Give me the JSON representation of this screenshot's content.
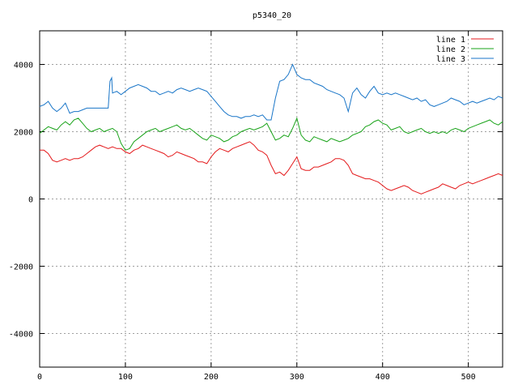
{
  "chart_data": {
    "type": "line",
    "title": "p5340_20",
    "xlabel": "",
    "ylabel": "",
    "xlim": [
      0,
      540
    ],
    "ylim": [
      -5000,
      5000
    ],
    "xticks": [
      0,
      100,
      200,
      300,
      400,
      500
    ],
    "yticks": [
      -4000,
      -2000,
      0,
      2000,
      4000
    ],
    "xtick_labels": [
      "0",
      "100",
      "200",
      "300",
      "400",
      "500"
    ],
    "ytick_labels": [
      "-4000",
      "-2000",
      "0",
      "2000",
      "4000"
    ],
    "grid": true,
    "legend_position": "top-right",
    "series": [
      {
        "name": "line 1",
        "color": "#e41a1c",
        "x": [
          0,
          5,
          10,
          15,
          20,
          25,
          30,
          35,
          40,
          45,
          50,
          55,
          60,
          65,
          70,
          75,
          80,
          85,
          90,
          95,
          100,
          105,
          110,
          115,
          120,
          125,
          130,
          135,
          140,
          145,
          150,
          155,
          160,
          165,
          170,
          175,
          180,
          185,
          190,
          195,
          200,
          205,
          210,
          215,
          220,
          225,
          230,
          235,
          240,
          245,
          250,
          255,
          260,
          265,
          270,
          275,
          280,
          285,
          290,
          295,
          300,
          305,
          310,
          315,
          320,
          325,
          330,
          335,
          340,
          345,
          350,
          355,
          360,
          365,
          370,
          375,
          380,
          385,
          390,
          395,
          400,
          405,
          410,
          415,
          420,
          425,
          430,
          435,
          440,
          445,
          450,
          455,
          460,
          465,
          470,
          475,
          480,
          485,
          490,
          495,
          500,
          505,
          510,
          515,
          520,
          525,
          530,
          535,
          540
        ],
        "y": [
          1450,
          1450,
          1350,
          1150,
          1100,
          1150,
          1200,
          1150,
          1200,
          1200,
          1250,
          1350,
          1450,
          1550,
          1600,
          1550,
          1500,
          1550,
          1500,
          1500,
          1400,
          1350,
          1450,
          1500,
          1600,
          1550,
          1500,
          1450,
          1400,
          1350,
          1250,
          1300,
          1400,
          1350,
          1300,
          1250,
          1200,
          1100,
          1100,
          1050,
          1250,
          1400,
          1500,
          1450,
          1400,
          1500,
          1550,
          1600,
          1650,
          1700,
          1600,
          1450,
          1400,
          1300,
          1000,
          750,
          800,
          700,
          850,
          1050,
          1250,
          900,
          850,
          850,
          950,
          950,
          1000,
          1050,
          1100,
          1200,
          1200,
          1150,
          1000,
          750,
          700,
          650,
          600,
          600,
          550,
          500,
          400,
          300,
          250,
          300,
          350,
          400,
          350,
          250,
          200,
          150,
          200,
          250,
          300,
          350,
          450,
          400,
          350,
          300,
          400,
          450,
          500,
          450,
          500,
          550,
          600,
          650,
          700,
          750,
          700
        ]
      },
      {
        "name": "line 2",
        "color": "#19a319",
        "x": [
          0,
          5,
          10,
          15,
          20,
          25,
          30,
          35,
          40,
          45,
          50,
          55,
          60,
          65,
          70,
          75,
          80,
          85,
          90,
          95,
          100,
          105,
          110,
          115,
          120,
          125,
          130,
          135,
          140,
          145,
          150,
          155,
          160,
          165,
          170,
          175,
          180,
          185,
          190,
          195,
          200,
          205,
          210,
          215,
          220,
          225,
          230,
          235,
          240,
          245,
          250,
          255,
          260,
          265,
          270,
          275,
          280,
          285,
          290,
          295,
          300,
          305,
          310,
          315,
          320,
          325,
          330,
          335,
          340,
          345,
          350,
          355,
          360,
          365,
          370,
          375,
          380,
          385,
          390,
          395,
          400,
          405,
          410,
          415,
          420,
          425,
          430,
          435,
          440,
          445,
          450,
          455,
          460,
          465,
          470,
          475,
          480,
          485,
          490,
          495,
          500,
          505,
          510,
          515,
          520,
          525,
          530,
          535,
          540
        ],
        "y": [
          1950,
          2050,
          2150,
          2100,
          2050,
          2200,
          2300,
          2200,
          2350,
          2400,
          2250,
          2100,
          2000,
          2050,
          2100,
          2000,
          2050,
          2100,
          2000,
          1650,
          1450,
          1500,
          1700,
          1800,
          1900,
          2000,
          2050,
          2100,
          2000,
          2050,
          2100,
          2150,
          2200,
          2100,
          2050,
          2100,
          2000,
          1900,
          1800,
          1750,
          1900,
          1850,
          1800,
          1700,
          1750,
          1850,
          1900,
          2000,
          2050,
          2100,
          2050,
          2100,
          2150,
          2250,
          2000,
          1750,
          1800,
          1900,
          1850,
          2100,
          2400,
          1900,
          1750,
          1700,
          1850,
          1800,
          1750,
          1700,
          1800,
          1750,
          1700,
          1750,
          1800,
          1900,
          1950,
          2000,
          2150,
          2200,
          2300,
          2350,
          2250,
          2200,
          2050,
          2100,
          2150,
          2000,
          1950,
          2000,
          2050,
          2100,
          2000,
          1950,
          2000,
          1950,
          2000,
          1950,
          2050,
          2100,
          2050,
          2000,
          2100,
          2150,
          2200,
          2250,
          2300,
          2350,
          2250,
          2200,
          2300
        ]
      },
      {
        "name": "line 3",
        "color": "#1a76c8",
        "x": [
          0,
          5,
          10,
          15,
          20,
          25,
          30,
          35,
          40,
          45,
          50,
          55,
          60,
          65,
          70,
          75,
          80,
          82,
          84,
          85,
          90,
          95,
          100,
          105,
          110,
          115,
          120,
          125,
          130,
          135,
          140,
          145,
          150,
          155,
          160,
          165,
          170,
          175,
          180,
          185,
          190,
          195,
          200,
          205,
          210,
          215,
          220,
          225,
          230,
          235,
          240,
          245,
          250,
          255,
          260,
          265,
          270,
          275,
          280,
          285,
          290,
          295,
          300,
          305,
          310,
          315,
          320,
          325,
          330,
          335,
          340,
          345,
          350,
          355,
          360,
          365,
          370,
          375,
          380,
          385,
          390,
          395,
          400,
          405,
          410,
          415,
          420,
          425,
          430,
          435,
          440,
          445,
          450,
          455,
          460,
          465,
          470,
          475,
          480,
          485,
          490,
          495,
          500,
          505,
          510,
          515,
          520,
          525,
          530,
          535,
          540
        ],
        "y": [
          2750,
          2800,
          2900,
          2700,
          2600,
          2700,
          2850,
          2550,
          2600,
          2600,
          2650,
          2700,
          2700,
          2700,
          2700,
          2700,
          2700,
          3500,
          3600,
          3150,
          3200,
          3100,
          3200,
          3300,
          3350,
          3400,
          3350,
          3300,
          3200,
          3200,
          3100,
          3150,
          3200,
          3150,
          3250,
          3300,
          3250,
          3200,
          3250,
          3300,
          3250,
          3200,
          3050,
          2900,
          2750,
          2600,
          2500,
          2450,
          2450,
          2400,
          2450,
          2450,
          2500,
          2450,
          2500,
          2350,
          2350,
          3000,
          3500,
          3550,
          3700,
          4000,
          3700,
          3600,
          3550,
          3550,
          3450,
          3400,
          3350,
          3250,
          3200,
          3150,
          3100,
          3000,
          2600,
          3150,
          3300,
          3100,
          3000,
          3200,
          3350,
          3150,
          3100,
          3150,
          3100,
          3150,
          3100,
          3050,
          3000,
          2950,
          3000,
          2900,
          2950,
          2800,
          2750,
          2800,
          2850,
          2900,
          3000,
          2950,
          2900,
          2800,
          2850,
          2900,
          2850,
          2900,
          2950,
          3000,
          2950,
          3050,
          3000
        ]
      }
    ]
  }
}
